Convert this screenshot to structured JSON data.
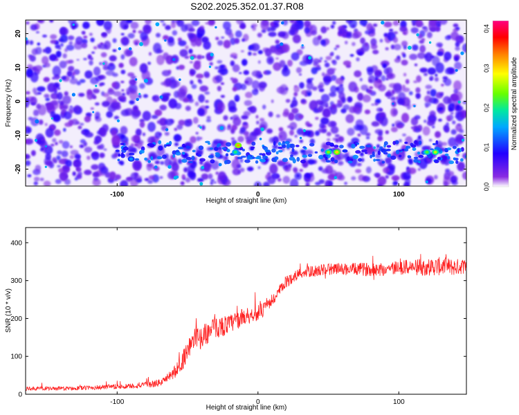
{
  "title": "S202.2025.352.01.37.R08",
  "chart_data": [
    {
      "type": "heatmap",
      "xlabel": "Height of straight line (km)",
      "ylabel": "Frequency (Hz)",
      "xlim": [
        -165,
        148
      ],
      "ylim": [
        -25,
        24
      ],
      "xticks": [
        -100,
        0,
        100
      ],
      "yticks": [
        -20,
        -10,
        0,
        10,
        20
      ],
      "colorbar": {
        "label": "Normalized spectral amplitude",
        "range": [
          0.0,
          0.42
        ],
        "ticks": [
          0.0,
          0.1,
          0.2,
          0.3,
          0.4
        ],
        "tick_labels": [
          "0.0",
          "0.1",
          "0.2",
          "0.3",
          "0.4"
        ],
        "colors": [
          "#ffffff",
          "#8a2be2",
          "#2200ff",
          "#00a8ff",
          "#00e8a0",
          "#66ff00",
          "#ffff00",
          "#ff7f00",
          "#ff0000",
          "#ff0080"
        ]
      },
      "band": {
        "frequency_hz": -15,
        "description_values": [
          {
            "x": -90,
            "y": -17,
            "v": 0.14
          },
          {
            "x": -14,
            "y": -13,
            "v": 0.32
          },
          {
            "x": -16,
            "y": -15,
            "v": 0.2
          },
          {
            "x": 50,
            "y": -15,
            "v": 0.24
          },
          {
            "x": 56,
            "y": -15,
            "v": 0.3
          },
          {
            "x": 120,
            "y": -15,
            "v": 0.22
          },
          {
            "x": 126,
            "y": -15,
            "v": 0.26
          }
        ]
      }
    },
    {
      "type": "line",
      "xlabel": "Height of straight line (km)",
      "ylabel": "SNR (10 * v/v)",
      "xlim": [
        -165,
        148
      ],
      "ylim": [
        0,
        440
      ],
      "xticks": [
        -100,
        0,
        100
      ],
      "yticks": [
        0,
        100,
        200,
        300,
        400
      ],
      "series": [
        {
          "color": "#ff2020",
          "x": [
            -165,
            -140,
            -120,
            -100,
            -80,
            -70,
            -65,
            -60,
            -55,
            -50,
            -45,
            -40,
            -35,
            -30,
            -25,
            -20,
            -15,
            -10,
            -5,
            0,
            5,
            10,
            15,
            20,
            25,
            30,
            40,
            50,
            60,
            70,
            80,
            90,
            100,
            110,
            120,
            130,
            140,
            148
          ],
          "y": [
            15,
            15,
            17,
            20,
            24,
            30,
            40,
            55,
            75,
            120,
            145,
            150,
            165,
            175,
            180,
            185,
            195,
            205,
            210,
            215,
            225,
            245,
            270,
            295,
            310,
            320,
            325,
            330,
            330,
            330,
            330,
            330,
            335,
            335,
            335,
            338,
            335,
            340
          ],
          "noise_amplitude": [
            10,
            10,
            12,
            14,
            16,
            20,
            25,
            35,
            45,
            55,
            60,
            60,
            60,
            55,
            55,
            50,
            50,
            45,
            45,
            40,
            40,
            35,
            35,
            30,
            30,
            30,
            30,
            32,
            32,
            34,
            36,
            38,
            40,
            42,
            45,
            50,
            45,
            40
          ]
        }
      ]
    }
  ]
}
